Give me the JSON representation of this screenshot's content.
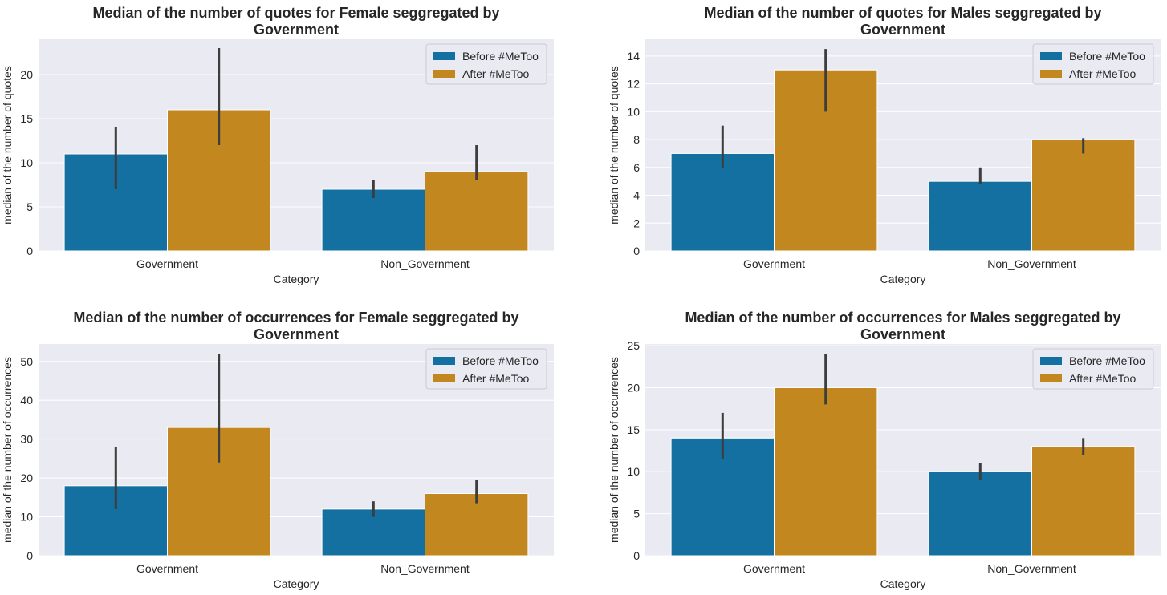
{
  "theme": {
    "plot_bg": "#eaeaf2",
    "grid": "#ffffff",
    "text": "#262626",
    "errbar": "#3d3d3d",
    "series_colors": [
      "#1470a0",
      "#c3871f"
    ]
  },
  "chart_data": [
    {
      "type": "bar",
      "title": "Median of the number of quotes for Female seggregated by\nGovernment",
      "xlabel": "Category",
      "ylabel": "median of the number of quotes",
      "categories": [
        "Government",
        "Non_Government"
      ],
      "ylim": [
        0,
        24
      ],
      "yticks": [
        0,
        5,
        10,
        15,
        20
      ],
      "grid": true,
      "legend_position": "top-right",
      "series": [
        {
          "name": "Before #MeToo",
          "values": [
            11,
            7
          ],
          "err_low": [
            7,
            6
          ],
          "err_high": [
            14,
            8
          ]
        },
        {
          "name": "After #MeToo",
          "values": [
            16,
            9
          ],
          "err_low": [
            12,
            8
          ],
          "err_high": [
            23,
            12
          ]
        }
      ]
    },
    {
      "type": "bar",
      "title": "Median of the number of quotes for Males seggregated by\nGovernment",
      "xlabel": "Category",
      "ylabel": "median of the number of quotes",
      "categories": [
        "Government",
        "Non_Government"
      ],
      "ylim": [
        0,
        15.2
      ],
      "yticks": [
        0,
        2,
        4,
        6,
        8,
        10,
        12,
        14
      ],
      "grid": true,
      "legend_position": "top-right",
      "series": [
        {
          "name": "Before #MeToo",
          "values": [
            7,
            5
          ],
          "err_low": [
            6,
            4.8
          ],
          "err_high": [
            9,
            6
          ]
        },
        {
          "name": "After #MeToo",
          "values": [
            13,
            8
          ],
          "err_low": [
            10,
            7
          ],
          "err_high": [
            14.5,
            8.1
          ]
        }
      ]
    },
    {
      "type": "bar",
      "title": "Median of the number of occurrences for Female seggregated by\nGovernment",
      "xlabel": "Category",
      "ylabel": "median of the number of occurrences",
      "categories": [
        "Government",
        "Non_Government"
      ],
      "ylim": [
        0,
        54.5
      ],
      "yticks": [
        0,
        10,
        20,
        30,
        40,
        50
      ],
      "grid": true,
      "legend_position": "top-right",
      "series": [
        {
          "name": "Before #MeToo",
          "values": [
            18,
            12
          ],
          "err_low": [
            12,
            10
          ],
          "err_high": [
            28,
            14
          ]
        },
        {
          "name": "After #MeToo",
          "values": [
            33,
            16
          ],
          "err_low": [
            24,
            13.5
          ],
          "err_high": [
            52,
            19.5
          ]
        }
      ]
    },
    {
      "type": "bar",
      "title": "Median of the number of occurrences for Males seggregated by\nGovernment",
      "xlabel": "Category",
      "ylabel": "median of the number of occurrences",
      "categories": [
        "Government",
        "Non_Government"
      ],
      "ylim": [
        0,
        25.2
      ],
      "yticks": [
        0,
        5,
        10,
        15,
        20,
        25
      ],
      "grid": true,
      "legend_position": "top-right",
      "series": [
        {
          "name": "Before #MeToo",
          "values": [
            14,
            10
          ],
          "err_low": [
            11.5,
            9
          ],
          "err_high": [
            17,
            11
          ]
        },
        {
          "name": "After #MeToo",
          "values": [
            20,
            13
          ],
          "err_low": [
            18,
            12
          ],
          "err_high": [
            24,
            14
          ]
        }
      ]
    }
  ]
}
